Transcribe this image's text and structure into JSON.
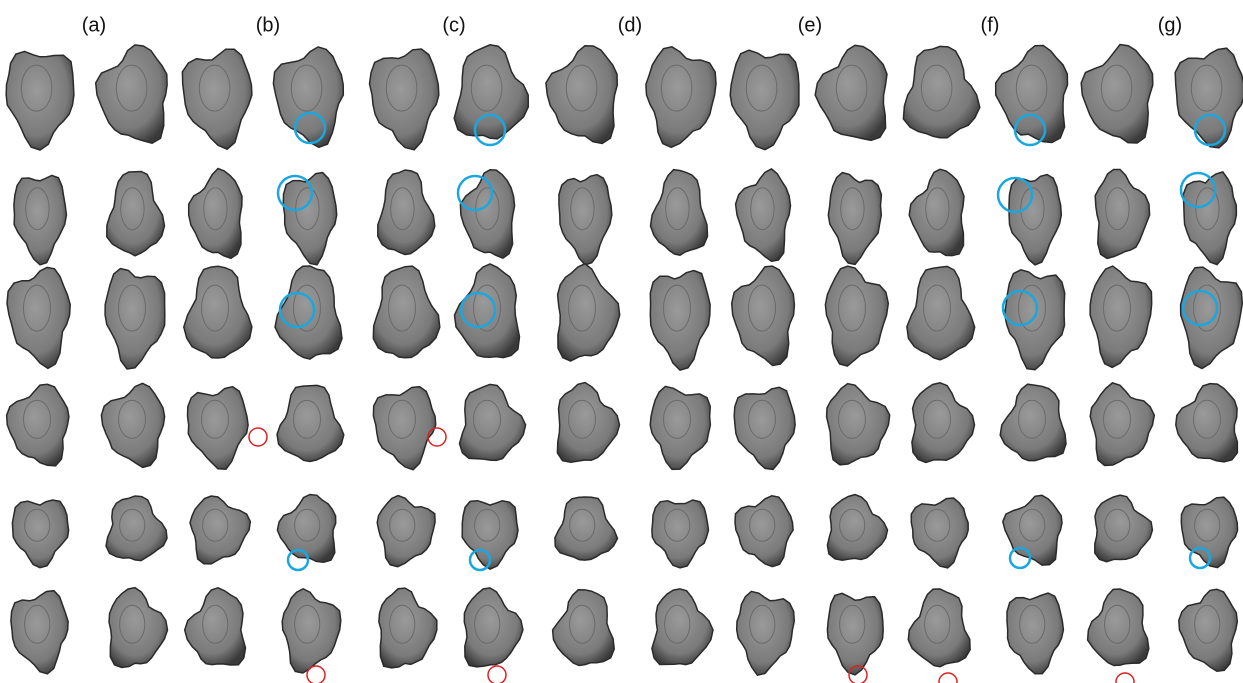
{
  "columns": [
    "(a)",
    "(b)",
    "(c)",
    "(d)",
    "(e)",
    "(f)",
    "(g)"
  ]
}
